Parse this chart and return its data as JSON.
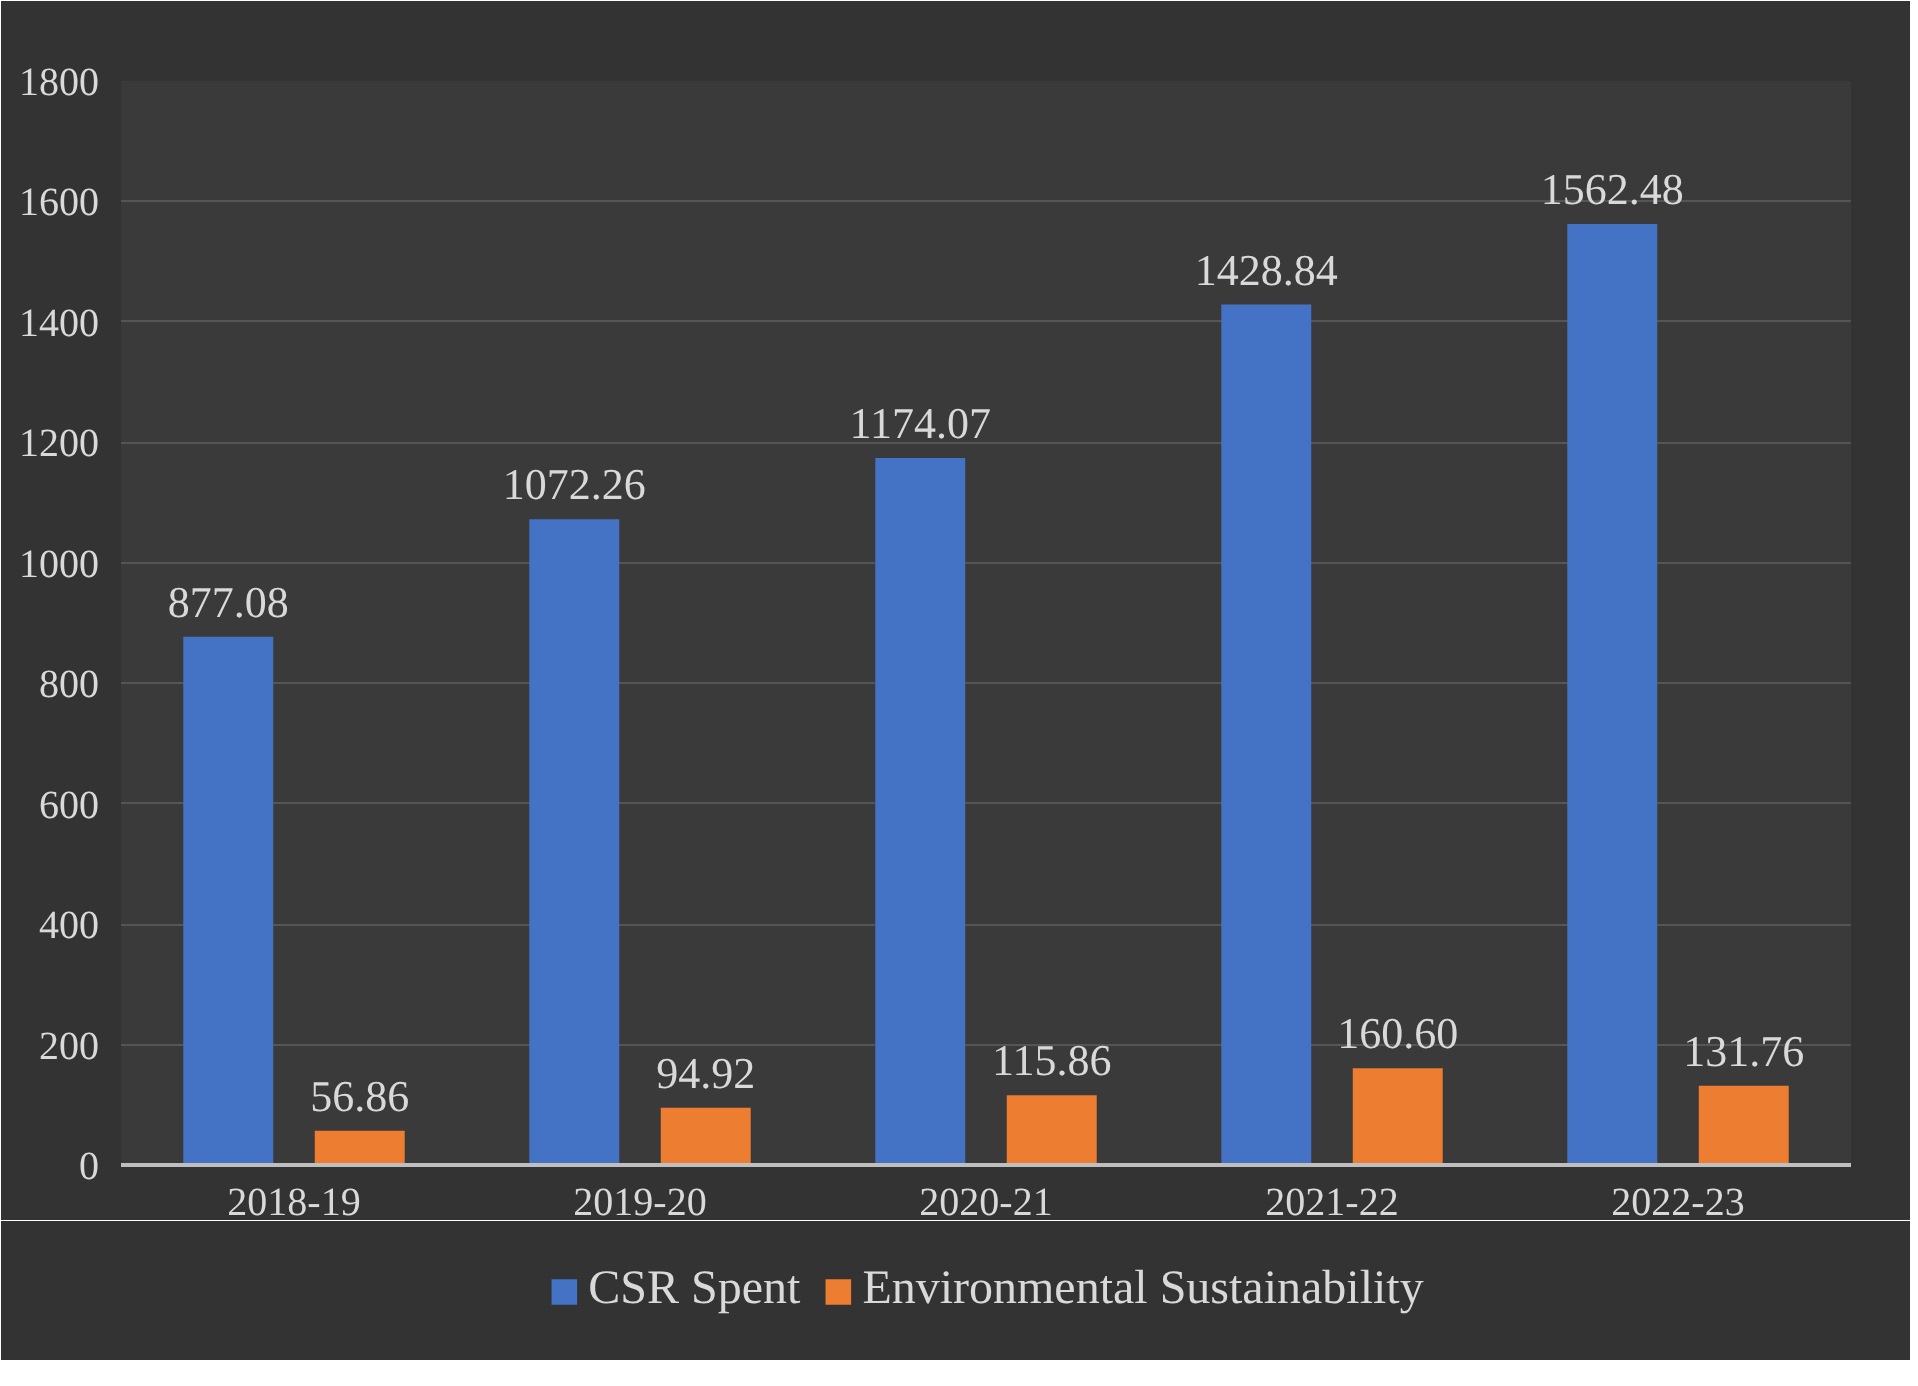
{
  "chart_data": {
    "type": "bar",
    "categories": [
      "2018-19",
      "2019-20",
      "2020-21",
      "2021-22",
      "2022-23"
    ],
    "series": [
      {
        "name": "CSR Spent",
        "color": "#4472c4",
        "values": [
          877.08,
          1072.26,
          1174.07,
          1428.84,
          1562.48
        ],
        "value_labels": [
          "877.08",
          "1072.26",
          "1174.07",
          "1428.84",
          "1562.48"
        ]
      },
      {
        "name": "Environmental Sustainability",
        "color": "#ed7d31",
        "values": [
          56.86,
          94.92,
          115.86,
          160.6,
          131.76
        ],
        "value_labels": [
          "56.86",
          "94.92",
          "115.86",
          "160.60",
          "131.76"
        ]
      }
    ],
    "ylim": [
      0,
      1800
    ],
    "yticks": [
      0,
      200,
      400,
      600,
      800,
      1000,
      1200,
      1400,
      1600,
      1800
    ],
    "grid": "y",
    "legend": "bottom"
  }
}
